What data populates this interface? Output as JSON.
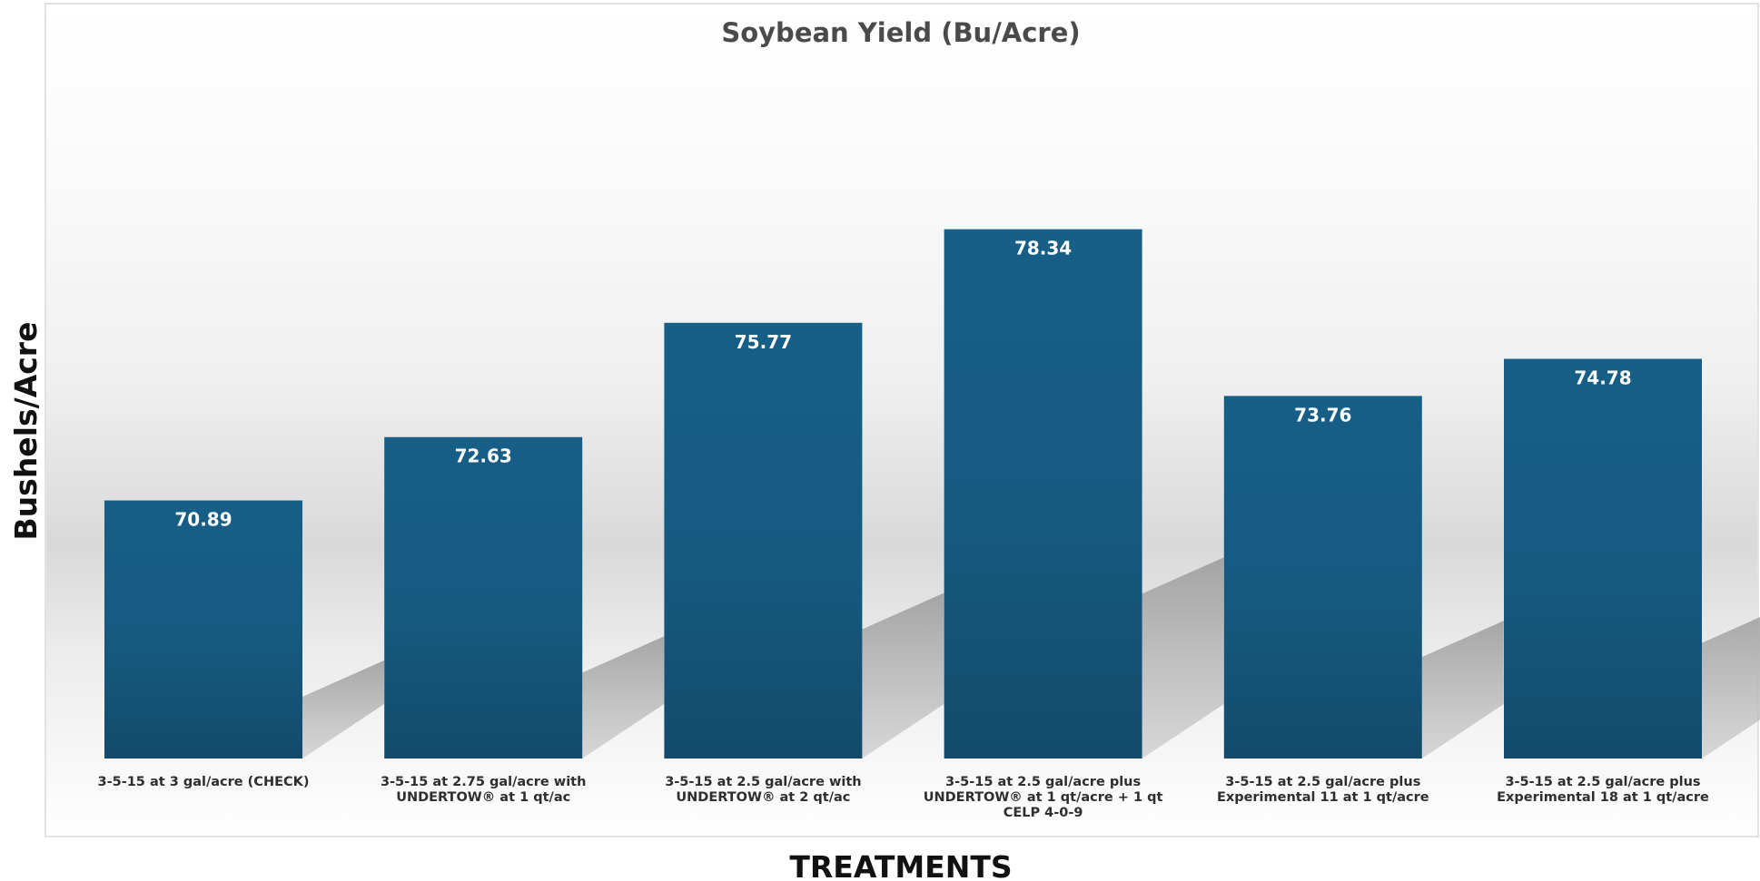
{
  "chart_data": {
    "type": "bar",
    "title": "Soybean Yield (Bu/Acre)",
    "xlabel": "TREATMENTS",
    "ylabel": "Bushels/Acre",
    "categories": [
      "3-5-15 at 3 gal/acre (CHECK)",
      "3-5-15 at 2.75 gal/acre with UNDERTOW® at 1 qt/ac",
      "3-5-15 at 2.5 gal/acre with UNDERTOW® at 2 qt/ac",
      "3-5-15 at 2.5 gal/acre plus UNDERTOW® at 1 qt/acre + 1 qt CELP 4-0-9",
      "3-5-15 at 2.5 gal/acre plus Experimental 11 at 1 qt/acre",
      "3-5-15 at 2.5 gal/acre plus Experimental 18 at 1 qt/acre"
    ],
    "category_lines": [
      [
        "3-5-15 at 3 gal/acre (CHECK)"
      ],
      [
        "3-5-15 at 2.75 gal/acre with",
        "UNDERTOW® at 1 qt/ac"
      ],
      [
        "3-5-15 at 2.5 gal/acre with",
        "UNDERTOW® at 2 qt/ac"
      ],
      [
        "3-5-15 at 2.5 gal/acre plus",
        "UNDERTOW® at 1 qt/acre + 1 qt",
        "CELP 4-0-9"
      ],
      [
        "3-5-15 at 2.5 gal/acre plus",
        "Experimental 11 at 1 qt/acre"
      ],
      [
        "3-5-15 at 2.5 gal/acre plus",
        "Experimental 18 at 1 qt/acre"
      ]
    ],
    "values": [
      70.89,
      72.63,
      75.77,
      78.34,
      73.76,
      74.78
    ],
    "value_labels": [
      "70.89",
      "72.63",
      "75.77",
      "78.34",
      "73.76",
      "74.78"
    ],
    "ylim": [
      63.8,
      80.5
    ],
    "grid": false,
    "legend": "none",
    "colors": {
      "bar_top": "#175f87",
      "bar_bottom": "#134a6b",
      "shadow": "#8c8c8c",
      "text_dark": "#111111",
      "title_gray": "#4a4a4a"
    }
  }
}
